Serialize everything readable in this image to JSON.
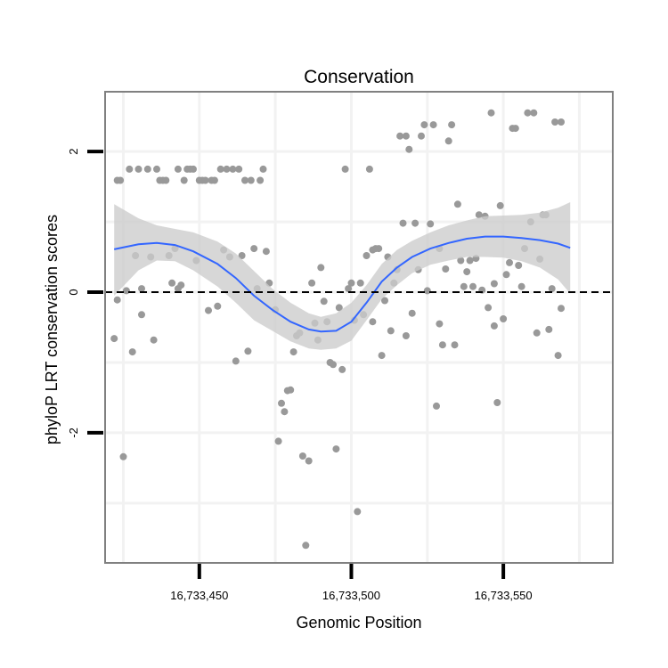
{
  "chart_data": {
    "type": "scatter",
    "title": "Conservation",
    "xlabel": "Genomic Position",
    "ylabel": "phyloP LRT conservation scores",
    "xlim": [
      16733419,
      16733586
    ],
    "ylim": [
      -3.85,
      2.85
    ],
    "x_ticks": [
      {
        "value": 16733450,
        "label": "16,733,450"
      },
      {
        "value": 16733500,
        "label": "16,733,500"
      },
      {
        "value": 16733550,
        "label": "16,733,550"
      }
    ],
    "y_ticks": [
      {
        "value": -2,
        "label": "-2"
      },
      {
        "value": 0,
        "label": "0"
      },
      {
        "value": 2,
        "label": "2"
      }
    ],
    "grid": true,
    "reference_line": {
      "y": 0,
      "style": "dashed"
    },
    "colors": {
      "points": "#999999",
      "smooth_line": "#3366FF",
      "confidence_band": "#cccccc",
      "panel_border": "#808080",
      "gridline": "#f2f2f2"
    },
    "points": [
      [
        16733422,
        -0.66
      ],
      [
        16733423,
        -0.11
      ],
      [
        16733423,
        1.59
      ],
      [
        16733424,
        1.59
      ],
      [
        16733425,
        -2.34
      ],
      [
        16733426,
        0.02
      ],
      [
        16733427,
        1.75
      ],
      [
        16733428,
        -0.85
      ],
      [
        16733429,
        0.52
      ],
      [
        16733430,
        1.75
      ],
      [
        16733431,
        -0.32
      ],
      [
        16733431,
        0.05
      ],
      [
        16733433,
        1.75
      ],
      [
        16733434,
        0.5
      ],
      [
        16733435,
        -0.68
      ],
      [
        16733436,
        1.75
      ],
      [
        16733437,
        1.59
      ],
      [
        16733438,
        1.59
      ],
      [
        16733439,
        1.59
      ],
      [
        16733440,
        0.52
      ],
      [
        16733441,
        0.13
      ],
      [
        16733442,
        0.62
      ],
      [
        16733443,
        0.05
      ],
      [
        16733443,
        1.75
      ],
      [
        16733444,
        0.1
      ],
      [
        16733445,
        1.59
      ],
      [
        16733446,
        1.75
      ],
      [
        16733447,
        1.75
      ],
      [
        16733448,
        1.75
      ],
      [
        16733449,
        0.45
      ],
      [
        16733450,
        1.59
      ],
      [
        16733451,
        1.59
      ],
      [
        16733452,
        1.59
      ],
      [
        16733453,
        -0.26
      ],
      [
        16733454,
        1.59
      ],
      [
        16733455,
        1.59
      ],
      [
        16733456,
        -0.2
      ],
      [
        16733457,
        1.75
      ],
      [
        16733458,
        0.6
      ],
      [
        16733459,
        1.75
      ],
      [
        16733460,
        0.5
      ],
      [
        16733461,
        1.75
      ],
      [
        16733462,
        -0.98
      ],
      [
        16733463,
        1.75
      ],
      [
        16733464,
        0.52
      ],
      [
        16733465,
        1.59
      ],
      [
        16733466,
        -0.84
      ],
      [
        16733467,
        1.59
      ],
      [
        16733468,
        0.62
      ],
      [
        16733469,
        0.05
      ],
      [
        16733470,
        1.59
      ],
      [
        16733471,
        1.75
      ],
      [
        16733472,
        0.58
      ],
      [
        16733473,
        0.13
      ],
      [
        16733475,
        -0.25
      ],
      [
        16733476,
        -2.12
      ],
      [
        16733477,
        -1.58
      ],
      [
        16733478,
        -1.7
      ],
      [
        16733479,
        -1.4
      ],
      [
        16733480,
        -1.39
      ],
      [
        16733481,
        -0.85
      ],
      [
        16733482,
        -0.62
      ],
      [
        16733483,
        -0.58
      ],
      [
        16733484,
        -2.33
      ],
      [
        16733485,
        -3.6
      ],
      [
        16733486,
        -2.4
      ],
      [
        16733487,
        0.13
      ],
      [
        16733488,
        -0.44
      ],
      [
        16733489,
        -0.68
      ],
      [
        16733490,
        0.35
      ],
      [
        16733491,
        -0.13
      ],
      [
        16733492,
        -0.42
      ],
      [
        16733493,
        -1.0
      ],
      [
        16733494,
        -1.03
      ],
      [
        16733495,
        -2.23
      ],
      [
        16733496,
        -0.22
      ],
      [
        16733497,
        -1.1
      ],
      [
        16733498,
        1.75
      ],
      [
        16733499,
        0.05
      ],
      [
        16733500,
        0.13
      ],
      [
        16733501,
        -0.4
      ],
      [
        16733502,
        -3.12
      ],
      [
        16733503,
        0.13
      ],
      [
        16733504,
        -0.32
      ],
      [
        16733505,
        0.52
      ],
      [
        16733506,
        1.75
      ],
      [
        16733507,
        0.6
      ],
      [
        16733507,
        -0.42
      ],
      [
        16733508,
        0.62
      ],
      [
        16733509,
        0.62
      ],
      [
        16733510,
        -0.9
      ],
      [
        16733511,
        -0.12
      ],
      [
        16733512,
        0.5
      ],
      [
        16733513,
        -0.55
      ],
      [
        16733514,
        0.13
      ],
      [
        16733515,
        0.32
      ],
      [
        16733516,
        2.22
      ],
      [
        16733517,
        0.98
      ],
      [
        16733518,
        -0.62
      ],
      [
        16733518,
        2.22
      ],
      [
        16733519,
        2.03
      ],
      [
        16733520,
        -0.3
      ],
      [
        16733521,
        0.98
      ],
      [
        16733522,
        0.32
      ],
      [
        16733523,
        2.22
      ],
      [
        16733524,
        2.38
      ],
      [
        16733525,
        0.02
      ],
      [
        16733526,
        0.97
      ],
      [
        16733527,
        2.38
      ],
      [
        16733528,
        -1.62
      ],
      [
        16733529,
        0.62
      ],
      [
        16733529,
        -0.45
      ],
      [
        16733530,
        -0.75
      ],
      [
        16733531,
        0.33
      ],
      [
        16733532,
        2.15
      ],
      [
        16733533,
        2.38
      ],
      [
        16733534,
        -0.75
      ],
      [
        16733535,
        1.25
      ],
      [
        16733536,
        0.45
      ],
      [
        16733537,
        0.08
      ],
      [
        16733538,
        0.29
      ],
      [
        16733539,
        0.45
      ],
      [
        16733540,
        0.08
      ],
      [
        16733541,
        0.48
      ],
      [
        16733542,
        1.1
      ],
      [
        16733543,
        0.03
      ],
      [
        16733544,
        1.08
      ],
      [
        16733545,
        -0.22
      ],
      [
        16733546,
        2.55
      ],
      [
        16733547,
        -0.48
      ],
      [
        16733547,
        0.12
      ],
      [
        16733548,
        -1.57
      ],
      [
        16733549,
        1.23
      ],
      [
        16733550,
        -0.38
      ],
      [
        16733551,
        0.25
      ],
      [
        16733552,
        0.42
      ],
      [
        16733553,
        2.33
      ],
      [
        16733554,
        2.33
      ],
      [
        16733555,
        0.38
      ],
      [
        16733556,
        0.08
      ],
      [
        16733557,
        0.62
      ],
      [
        16733558,
        2.55
      ],
      [
        16733559,
        1.0
      ],
      [
        16733560,
        2.55
      ],
      [
        16733561,
        -0.58
      ],
      [
        16733562,
        0.47
      ],
      [
        16733563,
        1.1
      ],
      [
        16733564,
        1.1
      ],
      [
        16733565,
        -0.53
      ],
      [
        16733566,
        0.05
      ],
      [
        16733567,
        2.42
      ],
      [
        16733568,
        -0.9
      ],
      [
        16733569,
        -0.23
      ],
      [
        16733569,
        2.42
      ]
    ],
    "smooth_fit": {
      "x": [
        16733422,
        16733430,
        16733436,
        16733442,
        16733448,
        16733456,
        16733462,
        16733468,
        16733474,
        16733480,
        16733486,
        16733490,
        16733495,
        16733500,
        16733505,
        16733510,
        16733515,
        16733520,
        16733526,
        16733532,
        16733538,
        16733544,
        16733550,
        16733556,
        16733562,
        16733568,
        16733572
      ],
      "y": [
        0.61,
        0.68,
        0.7,
        0.67,
        0.58,
        0.4,
        0.2,
        -0.05,
        -0.25,
        -0.42,
        -0.53,
        -0.56,
        -0.55,
        -0.42,
        -0.15,
        0.15,
        0.35,
        0.5,
        0.62,
        0.7,
        0.76,
        0.79,
        0.79,
        0.77,
        0.74,
        0.69,
        0.63
      ],
      "upper": [
        1.25,
        1.05,
        0.95,
        0.9,
        0.85,
        0.72,
        0.55,
        0.3,
        0.05,
        -0.15,
        -0.3,
        -0.35,
        -0.3,
        -0.15,
        0.1,
        0.4,
        0.6,
        0.73,
        0.85,
        0.95,
        1.02,
        1.08,
        1.09,
        1.1,
        1.13,
        1.2,
        1.28
      ],
      "lower": [
        -0.05,
        0.31,
        0.45,
        0.44,
        0.31,
        0.08,
        -0.15,
        -0.4,
        -0.55,
        -0.7,
        -0.8,
        -0.82,
        -0.8,
        -0.69,
        -0.4,
        -0.1,
        0.1,
        0.27,
        0.39,
        0.45,
        0.5,
        0.5,
        0.49,
        0.44,
        0.35,
        0.18,
        -0.02
      ]
    }
  }
}
